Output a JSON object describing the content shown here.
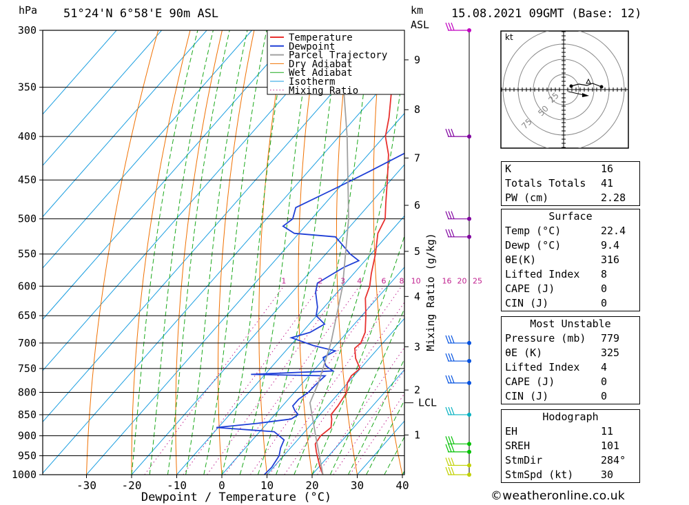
{
  "header": {
    "unit_hpa": "hPa",
    "location": "51°24'N  6°58'E  90m ASL",
    "unit_km": "km",
    "unit_asl": "ASL",
    "datetime": "15.08.2021  09GMT  (Base: 12)"
  },
  "credit": "©weatheronline.co.uk",
  "colors": {
    "temperature": "#e8302e",
    "dewpoint": "#1f3fd6",
    "parcel": "#a0a0a0",
    "dry_adiabat": "#f07000",
    "wet_adiabat": "#1aa81a",
    "isotherm": "#1a9ee0",
    "mixing_ratio": "#c0208f"
  },
  "chart_data": {
    "type": "line",
    "xlabel": "Dewpoint / Temperature (°C)",
    "ylabel": "hPa",
    "xlim": [
      -40,
      40
    ],
    "ylim": [
      1000,
      300
    ],
    "x_ticks": [
      "-30",
      "-20",
      "-10",
      "0",
      "10",
      "20",
      "30",
      "40"
    ],
    "y_ticks": [
      "300",
      "350",
      "400",
      "450",
      "500",
      "550",
      "600",
      "650",
      "700",
      "750",
      "800",
      "850",
      "900",
      "950",
      "1000"
    ],
    "km_ticks": [
      {
        "label": "9",
        "p": 325
      },
      {
        "label": "8",
        "p": 372
      },
      {
        "label": "7",
        "p": 424
      },
      {
        "label": "6",
        "p": 482
      },
      {
        "label": "5",
        "p": 546
      },
      {
        "label": "4",
        "p": 617
      },
      {
        "label": "3",
        "p": 707
      },
      {
        "label": "2",
        "p": 795
      },
      {
        "label": "1",
        "p": 898
      }
    ],
    "lcl_label": "LCL",
    "lcl_p": 823,
    "mixing_ratio_axis_label": "Mixing Ratio (g/kg)",
    "mixing_ratio_labels": [
      "1",
      "2",
      "3",
      "4",
      "6",
      "8",
      "10",
      "16",
      "20",
      "25"
    ],
    "mixing_ratio_values": [
      1,
      2,
      3,
      4,
      6,
      8,
      10,
      16,
      20,
      25
    ],
    "legend": [
      "Temperature",
      "Dewpoint",
      "Parcel Trajectory",
      "Dry Adiabat",
      "Wet Adiabat",
      "Isotherm",
      "Mixing Ratio"
    ],
    "series": [
      {
        "name": "Temperature",
        "points": [
          [
            1000,
            22.4
          ],
          [
            980,
            20.3
          ],
          [
            960,
            18.4
          ],
          [
            940,
            16.5
          ],
          [
            920,
            14.7
          ],
          [
            900,
            14.3
          ],
          [
            880,
            15.0
          ],
          [
            860,
            13.5
          ],
          [
            850,
            12.5
          ],
          [
            830,
            12.3
          ],
          [
            800,
            11.6
          ],
          [
            780,
            9.9
          ],
          [
            765,
            9.4
          ],
          [
            750,
            9.9
          ],
          [
            730,
            7.0
          ],
          [
            710,
            4.8
          ],
          [
            700,
            5.1
          ],
          [
            680,
            4.0
          ],
          [
            650,
            0.9
          ],
          [
            620,
            -2.6
          ],
          [
            600,
            -4.0
          ],
          [
            580,
            -6.1
          ],
          [
            550,
            -9.0
          ],
          [
            520,
            -12.5
          ],
          [
            500,
            -13.7
          ],
          [
            480,
            -16.5
          ],
          [
            450,
            -20.8
          ],
          [
            420,
            -25.5
          ],
          [
            400,
            -29.7
          ],
          [
            380,
            -32.6
          ],
          [
            350,
            -37.9
          ],
          [
            320,
            -43.0
          ],
          [
            300,
            -47.0
          ]
        ]
      },
      {
        "name": "Dewpoint",
        "points": [
          [
            1000,
            9.4
          ],
          [
            980,
            9.6
          ],
          [
            950,
            9.0
          ],
          [
            930,
            7.8
          ],
          [
            910,
            7.0
          ],
          [
            890,
            3.2
          ],
          [
            880,
            -10.4
          ],
          [
            870,
            -2.0
          ],
          [
            860,
            4.5
          ],
          [
            850,
            5.2
          ],
          [
            840,
            3.6
          ],
          [
            830,
            2.3
          ],
          [
            815,
            2.3
          ],
          [
            800,
            3.1
          ],
          [
            780,
            3.3
          ],
          [
            765,
            3.6
          ],
          [
            762,
            -13.1
          ],
          [
            755,
            4.4
          ],
          [
            745,
            1.9
          ],
          [
            728,
            -0.4
          ],
          [
            715,
            1.0
          ],
          [
            705,
            -4.8
          ],
          [
            690,
            -11.3
          ],
          [
            680,
            -8.2
          ],
          [
            665,
            -6.6
          ],
          [
            650,
            -10.1
          ],
          [
            635,
            -11.5
          ],
          [
            610,
            -14.8
          ],
          [
            595,
            -16.2
          ],
          [
            570,
            -13.4
          ],
          [
            560,
            -11.4
          ],
          [
            550,
            -14.6
          ],
          [
            532,
            -19.3
          ],
          [
            525,
            -21.2
          ],
          [
            520,
            -31.0
          ],
          [
            510,
            -34.9
          ],
          [
            500,
            -34.2
          ],
          [
            485,
            -35.7
          ],
          [
            460,
            -30.6
          ],
          [
            440,
            -26.5
          ],
          [
            420,
            -22.5
          ],
          [
            405,
            -19.0
          ],
          [
            390,
            -22.8
          ],
          [
            380,
            -26.4
          ],
          [
            350,
            -24.7
          ],
          [
            320,
            -22.4
          ],
          [
            305,
            -21.1
          ],
          [
            300,
            -22.4
          ]
        ]
      },
      {
        "name": "Parcel Trajectory",
        "points": [
          [
            1000,
            22.4
          ],
          [
            900,
            13.2
          ],
          [
            823,
            5.5
          ],
          [
            780,
            3.5
          ],
          [
            700,
            -1.5
          ],
          [
            600,
            -10.0
          ],
          [
            500,
            -21.8
          ],
          [
            400,
            -38.2
          ],
          [
            300,
            -60.6
          ]
        ]
      }
    ],
    "hodograph": {
      "unit": "kt",
      "ring_labels": [
        "25",
        "50",
        "75"
      ]
    },
    "wind_barbs_p": [
      300,
      400,
      500,
      525,
      700,
      735,
      780,
      850,
      920,
      940,
      975,
      1000
    ]
  },
  "indices": {
    "K": {
      "label": "K",
      "value": "16"
    },
    "TT": {
      "label": "Totals Totals",
      "value": "41"
    },
    "PW": {
      "label": "PW (cm)",
      "value": "2.28"
    }
  },
  "surface": {
    "title": "Surface",
    "rows": [
      {
        "label": "Temp (°C)",
        "value": "22.4"
      },
      {
        "label": "Dewp (°C)",
        "value": "9.4"
      },
      {
        "label": "θE(K)",
        "value": "316"
      },
      {
        "label": "Lifted Index",
        "value": "8"
      },
      {
        "label": "CAPE (J)",
        "value": "0"
      },
      {
        "label": "CIN (J)",
        "value": "0"
      }
    ]
  },
  "most_unstable": {
    "title": "Most Unstable",
    "rows": [
      {
        "label": "Pressure (mb)",
        "value": "779"
      },
      {
        "label": "θE (K)",
        "value": "325"
      },
      {
        "label": "Lifted Index",
        "value": "4"
      },
      {
        "label": "CAPE (J)",
        "value": "0"
      },
      {
        "label": "CIN (J)",
        "value": "0"
      }
    ]
  },
  "hodograph_table": {
    "title": "Hodograph",
    "rows": [
      {
        "label": "EH",
        "value": "11"
      },
      {
        "label": "SREH",
        "value": "101"
      },
      {
        "label": "StmDir",
        "value": "284°"
      },
      {
        "label": "StmSpd (kt)",
        "value": "30"
      }
    ]
  }
}
